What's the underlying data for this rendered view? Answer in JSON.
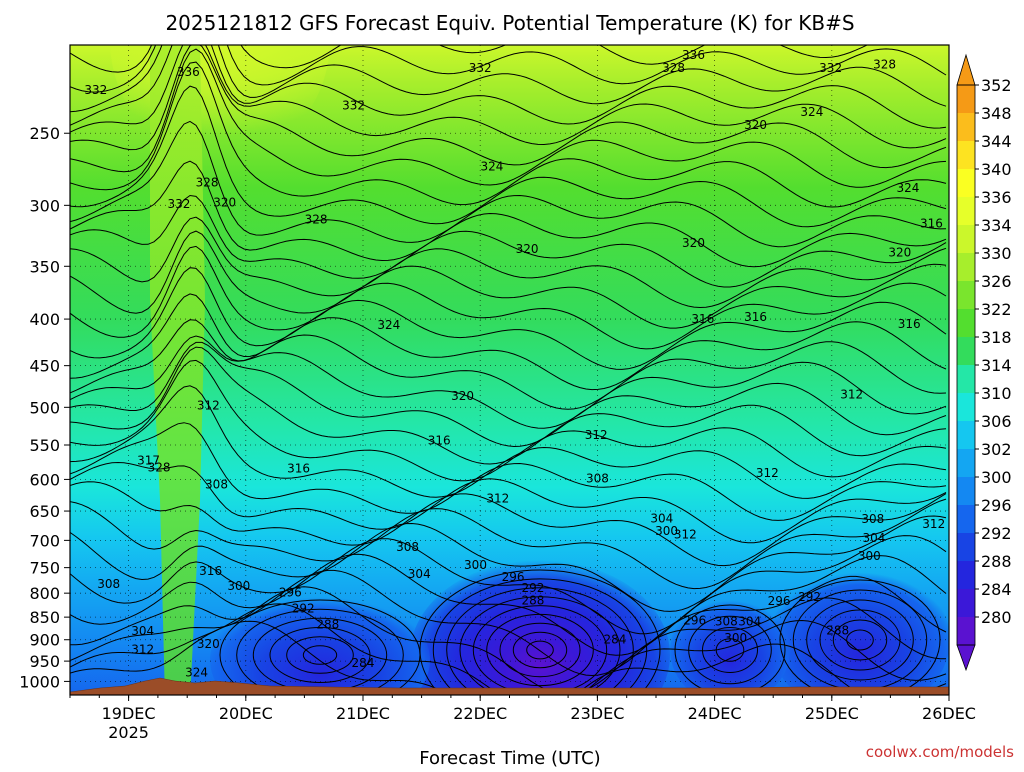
{
  "chart_data": {
    "type": "heatmap",
    "title": "2025121812 GFS Forecast Equiv. Potential Temperature (K) for KB#S",
    "xlabel": "Forecast Time (UTC)",
    "ylabel": "",
    "credit": "coolwx.com/models",
    "x_ticks": [
      {
        "label": "19DEC",
        "sublabel": "2025",
        "day": 19
      },
      {
        "label": "20DEC",
        "sublabel": "",
        "day": 20
      },
      {
        "label": "21DEC",
        "sublabel": "",
        "day": 21
      },
      {
        "label": "22DEC",
        "sublabel": "",
        "day": 22
      },
      {
        "label": "23DEC",
        "sublabel": "",
        "day": 23
      },
      {
        "label": "24DEC",
        "sublabel": "",
        "day": 24
      },
      {
        "label": "25DEC",
        "sublabel": "",
        "day": 25
      },
      {
        "label": "26DEC",
        "sublabel": "",
        "day": 26
      }
    ],
    "y_ticks": [
      "250",
      "300",
      "350",
      "400",
      "450",
      "500",
      "550",
      "600",
      "650",
      "700",
      "750",
      "800",
      "850",
      "900",
      "950",
      "1000"
    ],
    "y_tick_values": [
      250,
      300,
      350,
      400,
      450,
      500,
      550,
      600,
      650,
      700,
      750,
      800,
      850,
      900,
      950,
      1000
    ],
    "xlim_day": [
      18.5,
      26.0
    ],
    "ylim_hpa": [
      200,
      1035
    ],
    "y_scale": "log",
    "grid": true,
    "colorbar": {
      "labels": [
        "352",
        "348",
        "344",
        "340",
        "336",
        "334",
        "330",
        "326",
        "322",
        "318",
        "314",
        "310",
        "306",
        "302",
        "300",
        "296",
        "292",
        "288",
        "284",
        "280"
      ],
      "colors": [
        "#f59a16",
        "#fbbd1c",
        "#fde321",
        "#faff22",
        "#e6ff2a",
        "#cbf72b",
        "#a7ee2c",
        "#7ae52d",
        "#53de2f",
        "#33dc5c",
        "#24e7a7",
        "#1ae6db",
        "#15c7f0",
        "#14a6f2",
        "#1488f2",
        "#1566ee",
        "#1844e4",
        "#2426de",
        "#3b18d8",
        "#5a12d0"
      ],
      "placement": "right"
    },
    "contour_labels": [
      {
        "text": "336",
        "day": 19.51,
        "p": 214
      },
      {
        "text": "336",
        "day": 23.82,
        "p": 205
      },
      {
        "text": "332",
        "day": 18.72,
        "p": 224
      },
      {
        "text": "332",
        "day": 22.0,
        "p": 212
      },
      {
        "text": "332",
        "day": 20.92,
        "p": 233
      },
      {
        "text": "332",
        "day": 24.99,
        "p": 212
      },
      {
        "text": "328",
        "day": 23.65,
        "p": 212
      },
      {
        "text": "328",
        "day": 25.45,
        "p": 210
      },
      {
        "text": "328",
        "day": 19.67,
        "p": 283
      },
      {
        "text": "328",
        "day": 20.6,
        "p": 311
      },
      {
        "text": "332",
        "day": 19.43,
        "p": 299
      },
      {
        "text": "320",
        "day": 19.82,
        "p": 298
      },
      {
        "text": "324",
        "day": 24.83,
        "p": 237
      },
      {
        "text": "320",
        "day": 24.35,
        "p": 245
      },
      {
        "text": "324",
        "day": 22.1,
        "p": 272
      },
      {
        "text": "324",
        "day": 25.65,
        "p": 287
      },
      {
        "text": "320",
        "day": 22.4,
        "p": 335
      },
      {
        "text": "320",
        "day": 23.82,
        "p": 330
      },
      {
        "text": "316",
        "day": 25.85,
        "p": 314
      },
      {
        "text": "320",
        "day": 25.58,
        "p": 338
      },
      {
        "text": "324",
        "day": 21.22,
        "p": 406
      },
      {
        "text": "316",
        "day": 23.9,
        "p": 400
      },
      {
        "text": "316",
        "day": 24.35,
        "p": 398
      },
      {
        "text": "316",
        "day": 25.66,
        "p": 405
      },
      {
        "text": "320",
        "day": 21.85,
        "p": 486
      },
      {
        "text": "312",
        "day": 19.68,
        "p": 498
      },
      {
        "text": "316",
        "day": 21.65,
        "p": 544
      },
      {
        "text": "312",
        "day": 22.99,
        "p": 536
      },
      {
        "text": "312",
        "day": 25.17,
        "p": 484
      },
      {
        "text": "316",
        "day": 20.45,
        "p": 584
      },
      {
        "text": "317",
        "day": 19.17,
        "p": 572
      },
      {
        "text": "328",
        "day": 19.26,
        "p": 582
      },
      {
        "text": "308",
        "day": 19.75,
        "p": 608
      },
      {
        "text": "308",
        "day": 23.0,
        "p": 599
      },
      {
        "text": "312",
        "day": 24.45,
        "p": 590
      },
      {
        "text": "312",
        "day": 22.15,
        "p": 630
      },
      {
        "text": "304",
        "day": 23.55,
        "p": 662
      },
      {
        "text": "300",
        "day": 23.59,
        "p": 684
      },
      {
        "text": "312",
        "day": 23.75,
        "p": 690
      },
      {
        "text": "308",
        "day": 25.35,
        "p": 663
      },
      {
        "text": "312",
        "day": 25.87,
        "p": 672
      },
      {
        "text": "304",
        "day": 25.36,
        "p": 696
      },
      {
        "text": "300",
        "day": 25.32,
        "p": 728
      },
      {
        "text": "308",
        "day": 21.38,
        "p": 712
      },
      {
        "text": "304",
        "day": 21.48,
        "p": 762
      },
      {
        "text": "300",
        "day": 21.96,
        "p": 745
      },
      {
        "text": "296",
        "day": 22.28,
        "p": 768
      },
      {
        "text": "292",
        "day": 22.45,
        "p": 790
      },
      {
        "text": "288",
        "day": 22.45,
        "p": 815
      },
      {
        "text": "308",
        "day": 18.83,
        "p": 782
      },
      {
        "text": "316",
        "day": 19.7,
        "p": 756
      },
      {
        "text": "300",
        "day": 19.94,
        "p": 786
      },
      {
        "text": "296",
        "day": 20.38,
        "p": 799
      },
      {
        "text": "292",
        "day": 20.49,
        "p": 832
      },
      {
        "text": "288",
        "day": 20.7,
        "p": 866
      },
      {
        "text": "296",
        "day": 23.83,
        "p": 857
      },
      {
        "text": "308",
        "day": 24.1,
        "p": 859
      },
      {
        "text": "304",
        "day": 24.3,
        "p": 859
      },
      {
        "text": "296",
        "day": 24.55,
        "p": 816
      },
      {
        "text": "292",
        "day": 24.81,
        "p": 808
      },
      {
        "text": "288",
        "day": 25.05,
        "p": 879
      },
      {
        "text": "300",
        "day": 24.18,
        "p": 896
      },
      {
        "text": "284",
        "day": 23.15,
        "p": 900
      },
      {
        "text": "284",
        "day": 21.0,
        "p": 955
      },
      {
        "text": "304",
        "day": 19.12,
        "p": 880
      },
      {
        "text": "312",
        "day": 19.12,
        "p": 923
      },
      {
        "text": "320",
        "day": 19.68,
        "p": 910
      },
      {
        "text": "324",
        "day": 19.58,
        "p": 978
      }
    ]
  }
}
